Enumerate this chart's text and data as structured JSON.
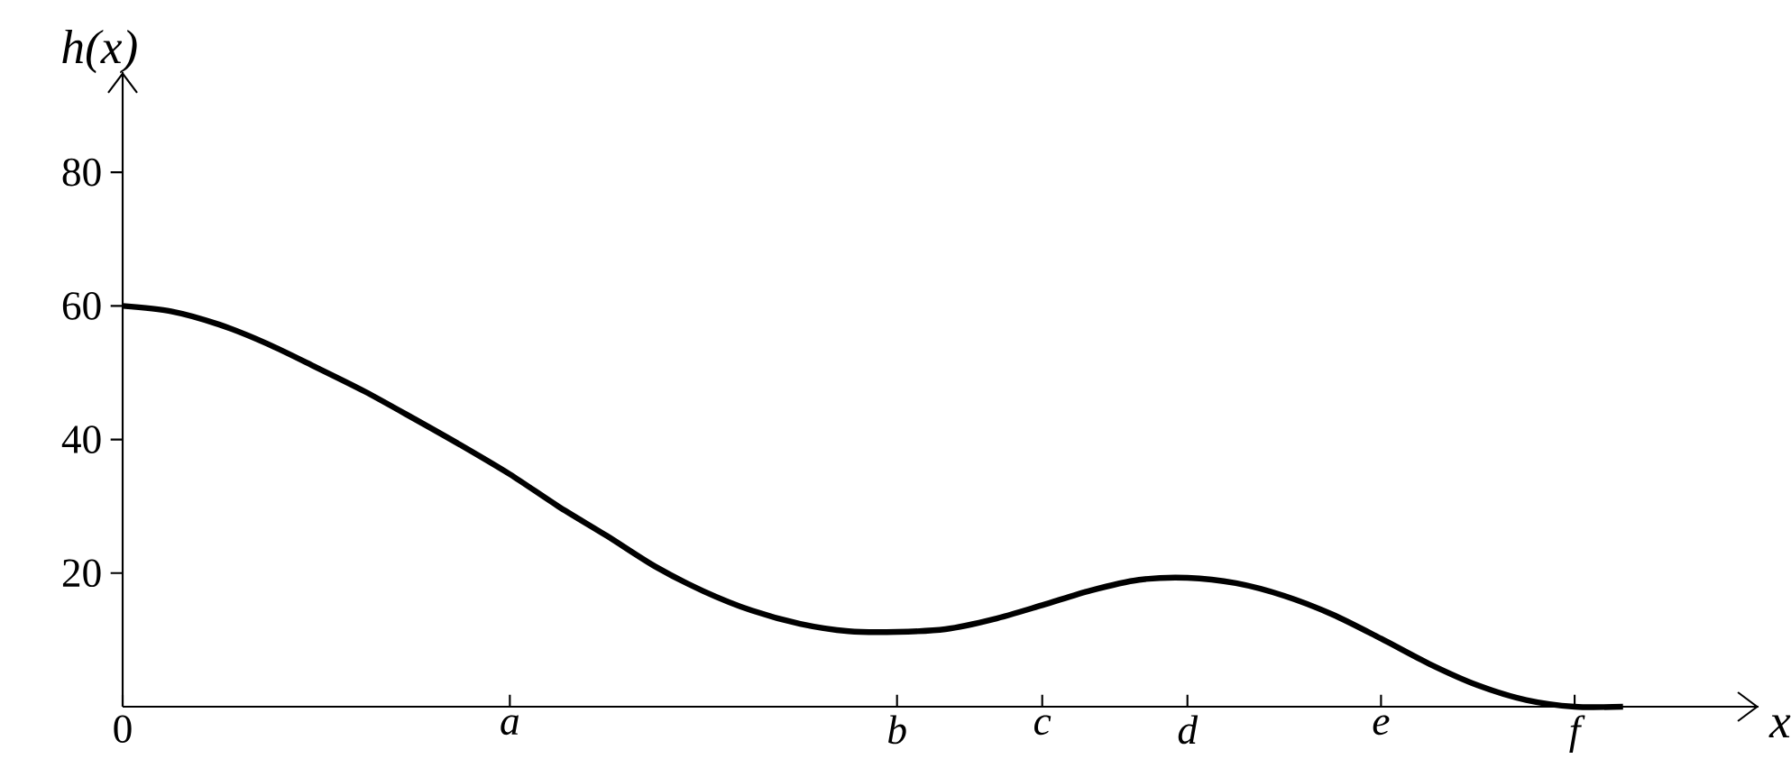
{
  "chart_data": {
    "type": "line",
    "xlabel": "x",
    "ylabel": "h(x)",
    "categories": [
      "0",
      null,
      null,
      null,
      null,
      null,
      null,
      null,
      "a",
      null,
      null,
      null,
      null,
      null,
      null,
      null,
      "b",
      null,
      null,
      "c",
      null,
      null,
      "d",
      null,
      null,
      null,
      "e",
      null,
      null,
      null,
      "f",
      null
    ],
    "values": [
      60,
      59.2,
      57.2,
      54.3,
      50.8,
      47.2,
      43.2,
      39.1,
      34.8,
      30.0,
      25.6,
      21.0,
      17.3,
      14.4,
      12.4,
      11.3,
      11.2,
      11.6,
      13.1,
      15.2,
      17.4,
      19.0,
      19.3,
      18.5,
      16.6,
      13.8,
      10.2,
      6.4,
      3.2,
      1.0,
      0,
      0
    ],
    "color": "#000000",
    "ylim": [
      0,
      95
    ],
    "yticks": [
      20,
      40,
      60,
      80
    ]
  }
}
